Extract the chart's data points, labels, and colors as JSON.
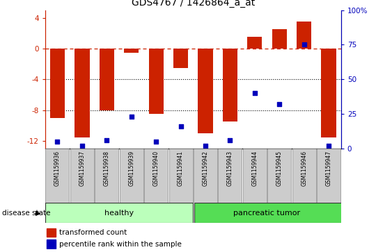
{
  "title": "GDS4767 / 1426864_a_at",
  "samples": [
    "GSM1159936",
    "GSM1159937",
    "GSM1159938",
    "GSM1159939",
    "GSM1159940",
    "GSM1159941",
    "GSM1159942",
    "GSM1159943",
    "GSM1159944",
    "GSM1159945",
    "GSM1159946",
    "GSM1159947"
  ],
  "bar_values": [
    -9.0,
    -11.5,
    -8.0,
    -0.5,
    -8.5,
    -2.5,
    -11.0,
    -9.5,
    1.5,
    2.5,
    3.5,
    -11.5
  ],
  "dot_values_pct": [
    5,
    2,
    6,
    23,
    5,
    16,
    2,
    6,
    40,
    32,
    75,
    2
  ],
  "bar_color": "#CC2200",
  "dot_color": "#0000BB",
  "ylim_left": [
    -13,
    5
  ],
  "ylim_right": [
    0,
    100
  ],
  "y_ticks_left": [
    -12,
    -8,
    -4,
    0,
    4
  ],
  "y_ticks_right": [
    0,
    25,
    50,
    75,
    100
  ],
  "hline_y": 0,
  "dotted_lines": [
    -4,
    -8
  ],
  "group_healthy_count": 6,
  "group_labels": [
    "healthy",
    "pancreatic tumor"
  ],
  "group_colors": [
    "#BBFFBB",
    "#55DD55"
  ],
  "disease_label": "disease state",
  "legend_bar": "transformed count",
  "legend_dot": "percentile rank within the sample",
  "background_color": "#FFFFFF",
  "label_box_color": "#CCCCCC"
}
